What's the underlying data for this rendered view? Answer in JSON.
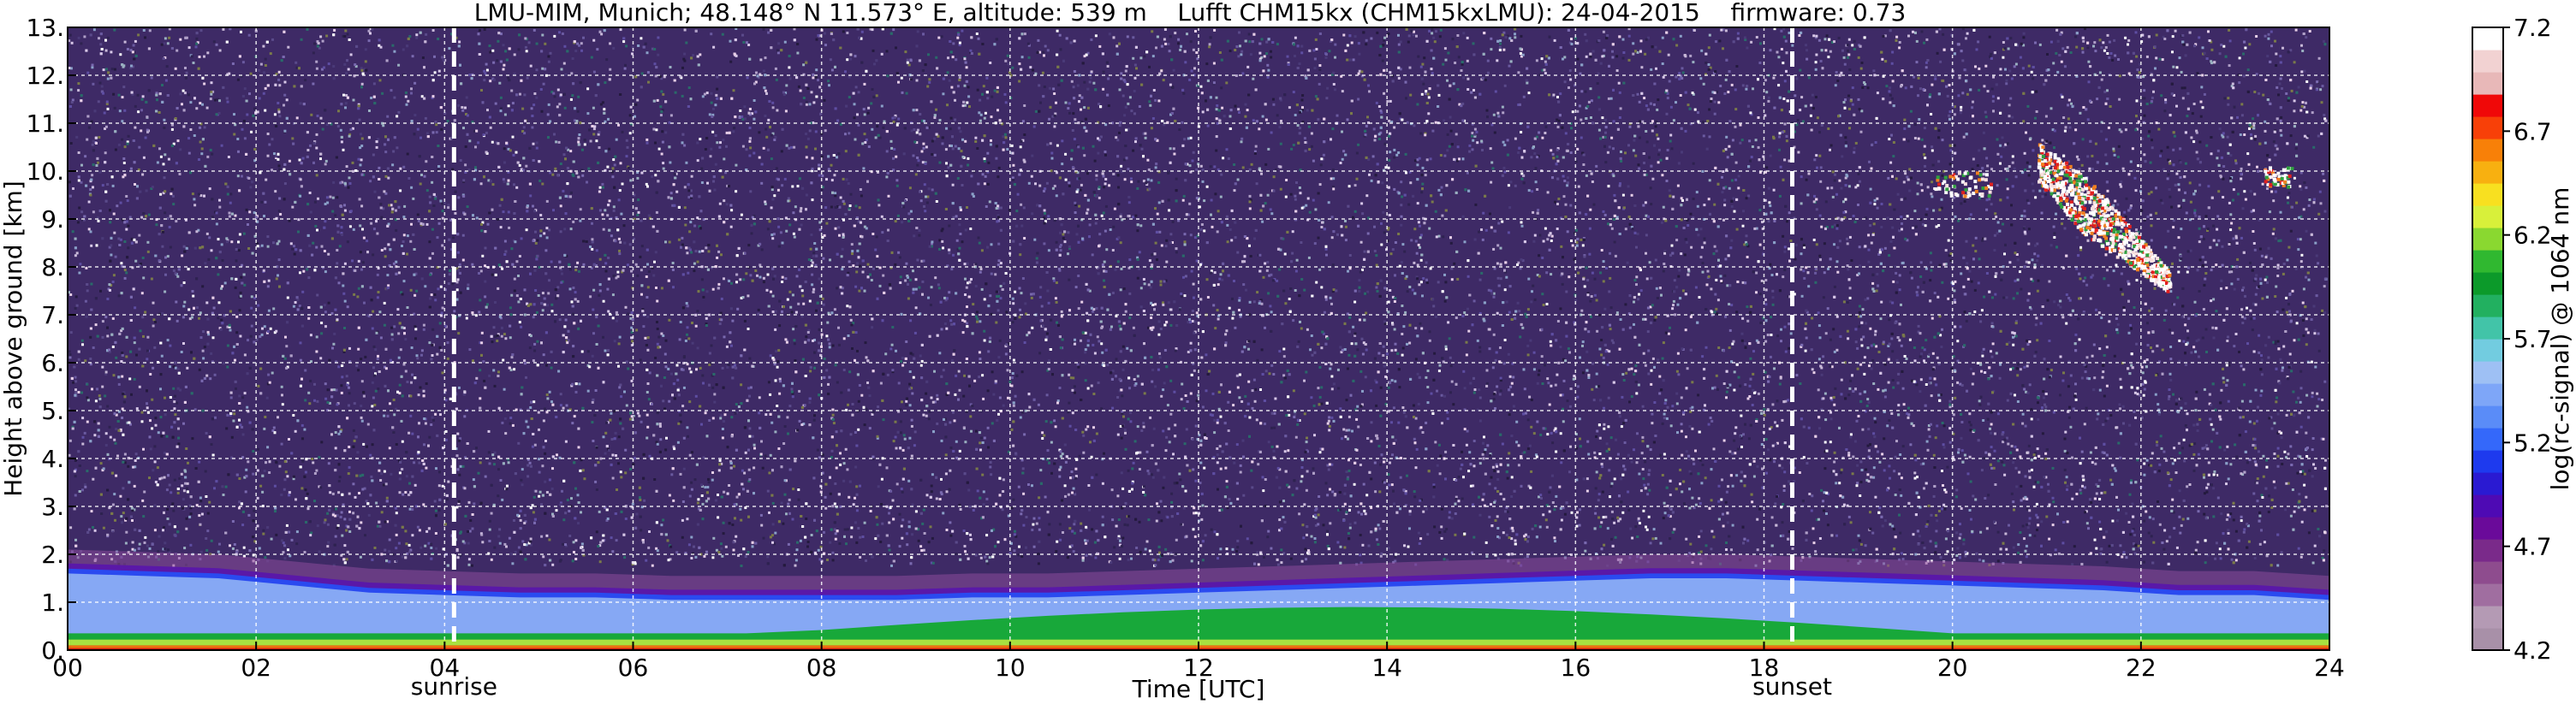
{
  "chart_data": {
    "type": "heatmap",
    "title": "LMU-MIM, Munich; 48.148° N 11.573° E, altitude: 539 m    Lufft CHM15kx (CHM15kxLMU): 24-04-2015    firmware: 0.73",
    "xlabel": "Time [UTC]",
    "ylabel": "Height above ground [km]",
    "xlim": [
      0,
      24
    ],
    "ylim": [
      0,
      13
    ],
    "x_ticks": [
      "00",
      "02",
      "04",
      "06",
      "08",
      "10",
      "12",
      "14",
      "16",
      "18",
      "20",
      "22",
      "24"
    ],
    "y_ticks": [
      "0.",
      "1.",
      "2.",
      "3.",
      "4.",
      "5.",
      "6.",
      "7.",
      "8.",
      "9.",
      "10.",
      "11.",
      "12.",
      "13."
    ],
    "grid": true,
    "markers": [
      {
        "label": "sunrise",
        "time": 4.1
      },
      {
        "label": "sunset",
        "time": 18.3
      }
    ],
    "colorbar": {
      "label": "log(rc-signal) @ 1064 nm",
      "range": [
        4.2,
        7.2
      ],
      "ticks": [
        "4.2",
        "4.7",
        "5.2",
        "5.7",
        "6.2",
        "6.7",
        "7.2"
      ],
      "colors": [
        "#a890a8",
        "#b49ab4",
        "#a06ea0",
        "#8e4c8e",
        "#7a2a8a",
        "#6a0a9a",
        "#4e0ab4",
        "#2a1ad2",
        "#1e3aee",
        "#3468fa",
        "#5a8cf8",
        "#7ea6f8",
        "#9ec0f4",
        "#72cce0",
        "#42c4a8",
        "#22b060",
        "#0c9a2a",
        "#30b830",
        "#8ad830",
        "#d8f03a",
        "#f8e020",
        "#f8b010",
        "#f88008",
        "#f84008",
        "#f00808",
        "#e8b8b8",
        "#f2d2d2",
        "#ffffff"
      ]
    },
    "layers": [
      {
        "name": "aerosol-boundary-layer",
        "top_km": [
          1.75,
          1.7,
          1.65,
          1.5,
          1.35,
          1.3,
          1.25,
          1.25,
          1.2,
          1.2,
          1.2,
          1.2,
          1.25,
          1.25,
          1.3,
          1.35,
          1.4,
          1.45,
          1.5,
          1.55,
          1.6,
          1.65,
          1.65,
          1.6,
          1.55,
          1.5,
          1.45,
          1.4,
          1.3,
          1.3,
          1.2
        ]
      }
    ],
    "clouds": [
      {
        "time_start": 20.9,
        "time_end": 22.3,
        "height_bottom_km": 7.7,
        "height_top_km": 10.2
      },
      {
        "time_start": 19.8,
        "time_end": 20.4,
        "height_bottom_km": 9.5,
        "height_top_km": 10.0
      },
      {
        "time_start": 23.3,
        "time_end": 23.6,
        "height_bottom_km": 9.7,
        "height_top_km": 10.1
      }
    ]
  }
}
